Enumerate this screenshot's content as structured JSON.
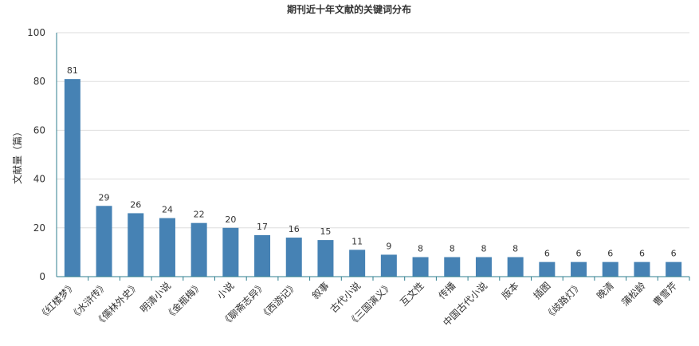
{
  "chart_data": {
    "type": "bar",
    "title": "期刊近十年文献的关键词分布",
    "ylabel": "文献量（篇）",
    "xlabel": "",
    "ylim": [
      0,
      100
    ],
    "yticks": [
      0,
      20,
      40,
      60,
      80,
      100
    ],
    "grid": true,
    "bar_color": "#4682b4",
    "categories": [
      "《红楼梦》",
      "《水浒传》",
      "《儒林外史》",
      "明清小说",
      "《金瓶梅》",
      "小说",
      "《聊斋志异》",
      "《西游记》",
      "叙事",
      "古代小说",
      "《三国演义》",
      "互文性",
      "传播",
      "中国古代小说",
      "版本",
      "插图",
      "《歧路灯》",
      "晚清",
      "蒲松龄",
      "曹雪芹"
    ],
    "values": [
      81,
      29,
      26,
      24,
      22,
      20,
      17,
      16,
      15,
      11,
      9,
      8,
      8,
      8,
      8,
      6,
      6,
      6,
      6,
      6
    ]
  }
}
